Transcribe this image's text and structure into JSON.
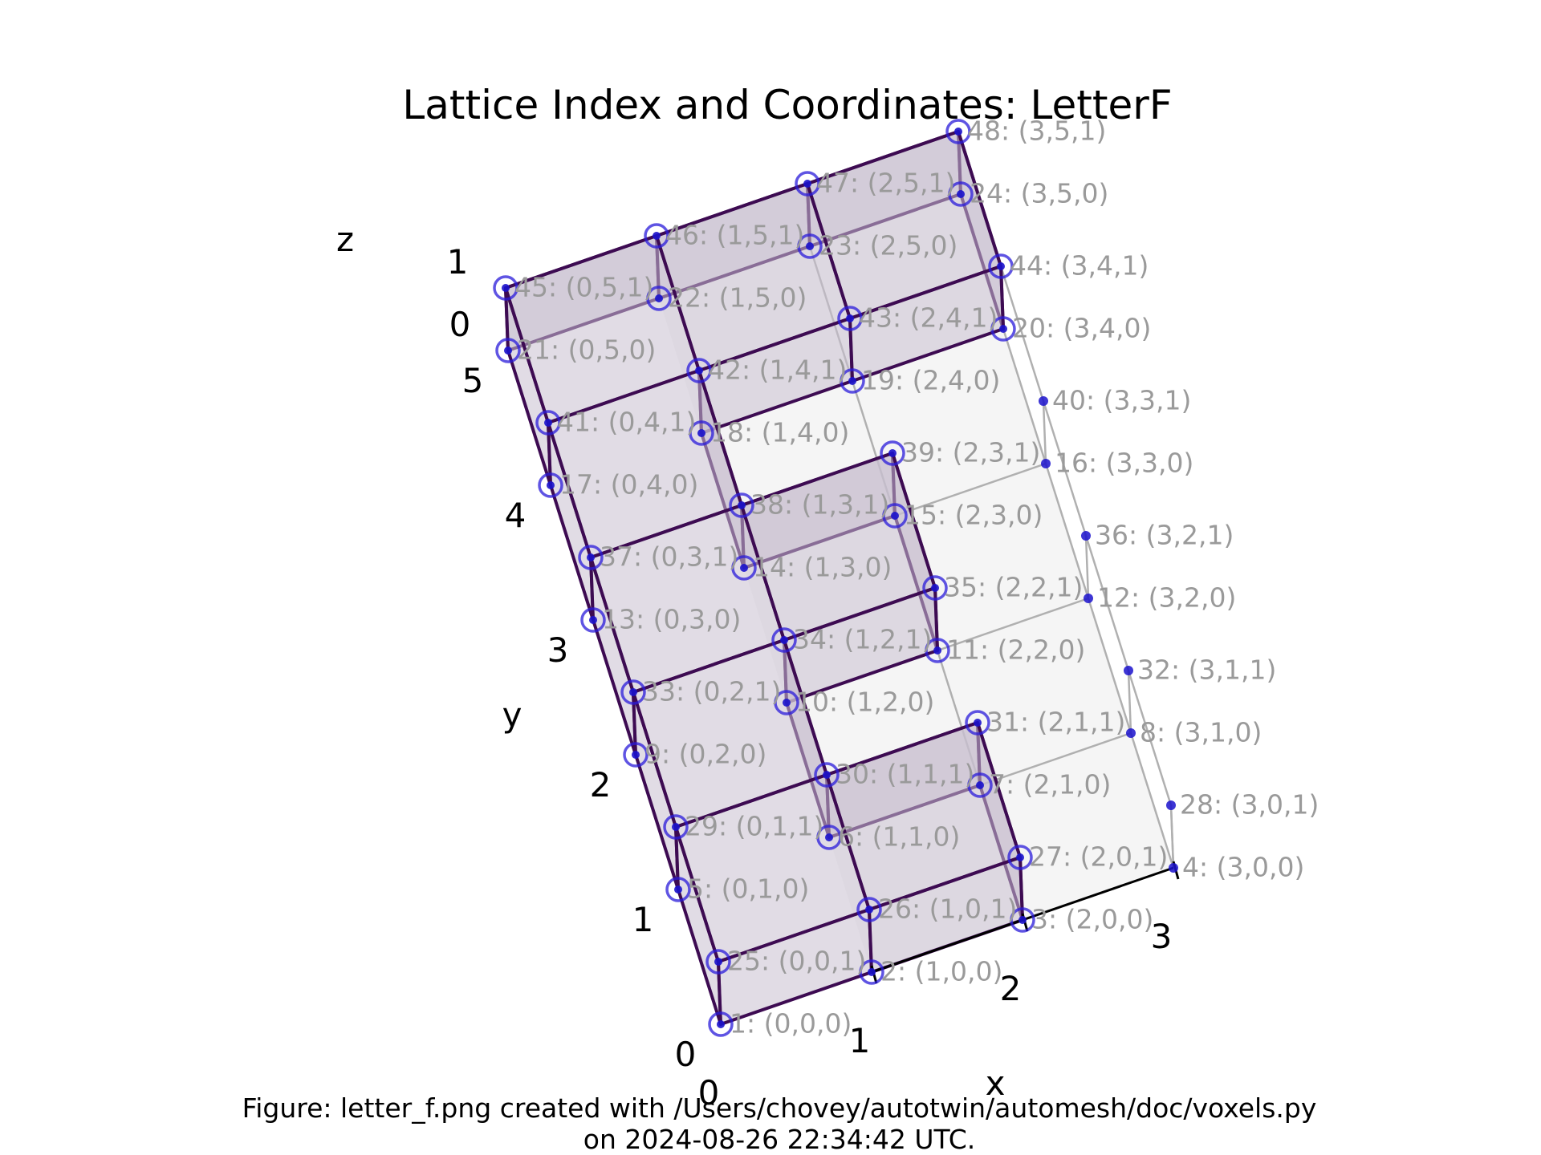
{
  "title": "Lattice Index and Coordinates: LetterF",
  "caption": {
    "line1": "Figure: letter_f.png created with /Users/chovey/autotwin/automesh/doc/voxels.py",
    "line2": "on 2024-08-26 22:34:42 UTC."
  },
  "axes": {
    "x": {
      "label": "x",
      "ticks": [
        "0",
        "1",
        "2",
        "3"
      ]
    },
    "y": {
      "label": "y",
      "ticks": [
        "0",
        "1",
        "2",
        "3",
        "4",
        "5"
      ]
    },
    "z": {
      "label": "z",
      "ticks": [
        "0",
        "1"
      ]
    }
  },
  "chart_data": {
    "type": "scatter",
    "title": "Lattice Index and Coordinates: LetterF",
    "grid": {
      "nx": 3,
      "ny": 5,
      "nz": 1
    },
    "occupied_voxels": [
      [
        0,
        0,
        0
      ],
      [
        1,
        0,
        0
      ],
      [
        0,
        1,
        0
      ],
      [
        0,
        2,
        0
      ],
      [
        1,
        2,
        0
      ],
      [
        0,
        3,
        0
      ],
      [
        0,
        4,
        0
      ],
      [
        1,
        4,
        0
      ],
      [
        2,
        4,
        0
      ]
    ],
    "points": [
      {
        "index": 1,
        "label": "1: (0,0,0)",
        "coords": [
          0,
          0,
          0
        ]
      },
      {
        "index": 2,
        "label": "2: (1,0,0)",
        "coords": [
          1,
          0,
          0
        ]
      },
      {
        "index": 3,
        "label": "3: (2,0,0)",
        "coords": [
          2,
          0,
          0
        ]
      },
      {
        "index": 4,
        "label": "4: (3,0,0)",
        "coords": [
          3,
          0,
          0
        ]
      },
      {
        "index": 5,
        "label": "5: (0,1,0)",
        "coords": [
          0,
          1,
          0
        ]
      },
      {
        "index": 6,
        "label": "6: (1,1,0)",
        "coords": [
          1,
          1,
          0
        ]
      },
      {
        "index": 7,
        "label": "7: (2,1,0)",
        "coords": [
          2,
          1,
          0
        ]
      },
      {
        "index": 8,
        "label": "8: (3,1,0)",
        "coords": [
          3,
          1,
          0
        ]
      },
      {
        "index": 9,
        "label": "9: (0,2,0)",
        "coords": [
          0,
          2,
          0
        ]
      },
      {
        "index": 10,
        "label": "10: (1,2,0)",
        "coords": [
          1,
          2,
          0
        ]
      },
      {
        "index": 11,
        "label": "11: (2,2,0)",
        "coords": [
          2,
          2,
          0
        ]
      },
      {
        "index": 12,
        "label": "12: (3,2,0)",
        "coords": [
          3,
          2,
          0
        ]
      },
      {
        "index": 13,
        "label": "13: (0,3,0)",
        "coords": [
          0,
          3,
          0
        ]
      },
      {
        "index": 14,
        "label": "14: (1,3,0)",
        "coords": [
          1,
          3,
          0
        ]
      },
      {
        "index": 15,
        "label": "15: (2,3,0)",
        "coords": [
          2,
          3,
          0
        ]
      },
      {
        "index": 16,
        "label": "16: (3,3,0)",
        "coords": [
          3,
          3,
          0
        ]
      },
      {
        "index": 17,
        "label": "17: (0,4,0)",
        "coords": [
          0,
          4,
          0
        ]
      },
      {
        "index": 18,
        "label": "18: (1,4,0)",
        "coords": [
          1,
          4,
          0
        ]
      },
      {
        "index": 19,
        "label": "19: (2,4,0)",
        "coords": [
          2,
          4,
          0
        ]
      },
      {
        "index": 20,
        "label": "20: (3,4,0)",
        "coords": [
          3,
          4,
          0
        ]
      },
      {
        "index": 21,
        "label": "21: (0,5,0)",
        "coords": [
          0,
          5,
          0
        ]
      },
      {
        "index": 22,
        "label": "22: (1,5,0)",
        "coords": [
          1,
          5,
          0
        ]
      },
      {
        "index": 23,
        "label": "23: (2,5,0)",
        "coords": [
          2,
          5,
          0
        ]
      },
      {
        "index": 24,
        "label": "24: (3,5,0)",
        "coords": [
          3,
          5,
          0
        ]
      },
      {
        "index": 25,
        "label": "25: (0,0,1)",
        "coords": [
          0,
          0,
          1
        ]
      },
      {
        "index": 26,
        "label": "26: (1,0,1)",
        "coords": [
          1,
          0,
          1
        ]
      },
      {
        "index": 27,
        "label": "27: (2,0,1)",
        "coords": [
          2,
          0,
          1
        ]
      },
      {
        "index": 28,
        "label": "28: (3,0,1)",
        "coords": [
          3,
          0,
          1
        ]
      },
      {
        "index": 29,
        "label": "29: (0,1,1)",
        "coords": [
          0,
          1,
          1
        ]
      },
      {
        "index": 30,
        "label": "30: (1,1,1)",
        "coords": [
          1,
          1,
          1
        ]
      },
      {
        "index": 31,
        "label": "31: (2,1,1)",
        "coords": [
          2,
          1,
          1
        ]
      },
      {
        "index": 32,
        "label": "32: (3,1,1)",
        "coords": [
          3,
          1,
          1
        ]
      },
      {
        "index": 33,
        "label": "33: (0,2,1)",
        "coords": [
          0,
          2,
          1
        ]
      },
      {
        "index": 34,
        "label": "34: (1,2,1)",
        "coords": [
          1,
          2,
          1
        ]
      },
      {
        "index": 35,
        "label": "35: (2,2,1)",
        "coords": [
          2,
          2,
          1
        ]
      },
      {
        "index": 36,
        "label": "36: (3,2,1)",
        "coords": [
          3,
          2,
          1
        ]
      },
      {
        "index": 37,
        "label": "37: (0,3,1)",
        "coords": [
          0,
          3,
          1
        ]
      },
      {
        "index": 38,
        "label": "38: (1,3,1)",
        "coords": [
          1,
          3,
          1
        ]
      },
      {
        "index": 39,
        "label": "39: (2,3,1)",
        "coords": [
          2,
          3,
          1
        ]
      },
      {
        "index": 40,
        "label": "40: (3,3,1)",
        "coords": [
          3,
          3,
          1
        ]
      },
      {
        "index": 41,
        "label": "41: (0,4,1)",
        "coords": [
          0,
          4,
          1
        ]
      },
      {
        "index": 42,
        "label": "42: (1,4,1)",
        "coords": [
          1,
          4,
          1
        ]
      },
      {
        "index": 43,
        "label": "43: (2,4,1)",
        "coords": [
          2,
          4,
          1
        ]
      },
      {
        "index": 44,
        "label": "44: (3,4,1)",
        "coords": [
          3,
          4,
          1
        ]
      },
      {
        "index": 45,
        "label": "45: (0,5,1)",
        "coords": [
          0,
          5,
          1
        ]
      },
      {
        "index": 46,
        "label": "46: (1,5,1)",
        "coords": [
          1,
          5,
          1
        ]
      },
      {
        "index": 47,
        "label": "47: (2,5,1)",
        "coords": [
          2,
          5,
          1
        ]
      },
      {
        "index": 48,
        "label": "48: (3,5,1)",
        "coords": [
          3,
          5,
          1
        ]
      }
    ]
  },
  "colors": {
    "voxel_face": "#c9bfd0",
    "voxel_edge": "#3d0b52",
    "marker_ring": "#2a1bd9",
    "marker_dot": "#1b12cc",
    "label": "#9a9a9a",
    "grid_line": "#b0b0b0",
    "grid_face": "#f2f2f2"
  }
}
